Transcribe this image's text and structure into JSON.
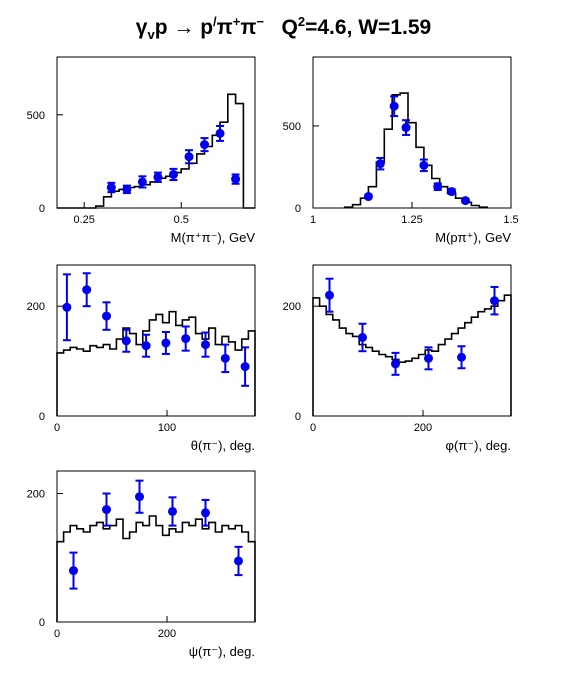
{
  "title": {
    "reaction_a": "γ",
    "reaction_a_sub": "v",
    "reaction_b": "p → p",
    "reaction_b_sup": "/",
    "reaction_c": "π",
    "reaction_c_sup": "+",
    "reaction_d": "π",
    "reaction_d_sup": "−",
    "q2_label": "Q",
    "q2_sup": "2",
    "q2_value": "=4.6, W=1.59"
  },
  "colors": {
    "data_points": "#0000ee",
    "histogram": "#000000",
    "axes": "#000000"
  },
  "chart_data": [
    {
      "type": "histogram+scatter",
      "panel": "top-left",
      "xlabel": "M(π⁺π⁻), GeV",
      "xlim": [
        0.18,
        0.69
      ],
      "ylim": [
        0,
        810
      ],
      "xticks": [
        0.25,
        0.5
      ],
      "yticks": [
        0,
        500
      ],
      "hist_edges": [
        0.18,
        0.2,
        0.22,
        0.24,
        0.26,
        0.28,
        0.3,
        0.32,
        0.34,
        0.36,
        0.38,
        0.4,
        0.42,
        0.44,
        0.46,
        0.48,
        0.5,
        0.52,
        0.54,
        0.56,
        0.58,
        0.6,
        0.62,
        0.64,
        0.66,
        0.69
      ],
      "hist_values": [
        0,
        0,
        0,
        0,
        0,
        10,
        60,
        90,
        100,
        110,
        115,
        125,
        140,
        160,
        170,
        190,
        210,
        240,
        290,
        330,
        390,
        460,
        610,
        560,
        0
      ],
      "points": [
        {
          "x": 0.32,
          "y": 110,
          "err": 25
        },
        {
          "x": 0.36,
          "y": 100,
          "err": 20
        },
        {
          "x": 0.4,
          "y": 140,
          "err": 30
        },
        {
          "x": 0.44,
          "y": 165,
          "err": 25
        },
        {
          "x": 0.48,
          "y": 180,
          "err": 30
        },
        {
          "x": 0.52,
          "y": 275,
          "err": 35
        },
        {
          "x": 0.56,
          "y": 340,
          "err": 35
        },
        {
          "x": 0.6,
          "y": 400,
          "err": 40
        },
        {
          "x": 0.64,
          "y": 155,
          "err": 25
        }
      ]
    },
    {
      "type": "histogram+scatter",
      "panel": "top-right",
      "xlabel": "M(pπ⁺), GeV",
      "xlim": [
        1.0,
        1.5
      ],
      "ylim": [
        0,
        920
      ],
      "xticks": [
        1,
        1.25,
        1.5
      ],
      "xticklabels": [
        "1",
        "1.25",
        "1.5"
      ],
      "yticks": [
        0,
        500
      ],
      "hist_edges": [
        1.08,
        1.1,
        1.12,
        1.14,
        1.16,
        1.18,
        1.2,
        1.22,
        1.24,
        1.26,
        1.28,
        1.3,
        1.32,
        1.34,
        1.36,
        1.38,
        1.4,
        1.42,
        1.44
      ],
      "hist_values": [
        5,
        20,
        60,
        130,
        280,
        480,
        690,
        700,
        520,
        370,
        260,
        180,
        130,
        90,
        60,
        35,
        15,
        5
      ],
      "points": [
        {
          "x": 1.14,
          "y": 70,
          "err": 10
        },
        {
          "x": 1.17,
          "y": 270,
          "err": 35
        },
        {
          "x": 1.205,
          "y": 620,
          "err": 60
        },
        {
          "x": 1.235,
          "y": 490,
          "err": 45
        },
        {
          "x": 1.28,
          "y": 260,
          "err": 35
        },
        {
          "x": 1.315,
          "y": 130,
          "err": 20
        },
        {
          "x": 1.35,
          "y": 100,
          "err": 15
        },
        {
          "x": 1.385,
          "y": 45,
          "err": 10
        }
      ]
    },
    {
      "type": "histogram+scatter",
      "panel": "middle-left",
      "xlabel": "θ(π⁻), deg.",
      "xlim": [
        0,
        180
      ],
      "ylim": [
        0,
        275
      ],
      "xticks": [
        0,
        100
      ],
      "yticks": [
        0,
        200
      ],
      "hist_edges": [
        0,
        6,
        12,
        18,
        24,
        30,
        36,
        42,
        48,
        54,
        60,
        66,
        72,
        78,
        84,
        90,
        96,
        102,
        108,
        114,
        120,
        126,
        132,
        138,
        144,
        150,
        156,
        162,
        168,
        174,
        180
      ],
      "hist_values": [
        115,
        120,
        125,
        122,
        118,
        128,
        125,
        130,
        122,
        140,
        160,
        150,
        130,
        155,
        175,
        185,
        170,
        190,
        165,
        175,
        180,
        150,
        140,
        160,
        130,
        145,
        135,
        120,
        140,
        155
      ],
      "points": [
        {
          "x": 9,
          "y": 198,
          "err": 60
        },
        {
          "x": 27,
          "y": 230,
          "err": 30
        },
        {
          "x": 45,
          "y": 182,
          "err": 25
        },
        {
          "x": 63,
          "y": 137,
          "err": 20
        },
        {
          "x": 81,
          "y": 128,
          "err": 20
        },
        {
          "x": 99,
          "y": 133,
          "err": 20
        },
        {
          "x": 117,
          "y": 141,
          "err": 22
        },
        {
          "x": 135,
          "y": 130,
          "err": 22
        },
        {
          "x": 153,
          "y": 105,
          "err": 25
        },
        {
          "x": 171,
          "y": 90,
          "err": 35
        }
      ]
    },
    {
      "type": "histogram+scatter",
      "panel": "middle-right",
      "xlabel": "φ(π⁻), deg.",
      "xlim": [
        0,
        360
      ],
      "ylim": [
        0,
        275
      ],
      "xticks": [
        0,
        200
      ],
      "yticks": [
        0,
        200
      ],
      "hist_edges": [
        0,
        12,
        24,
        36,
        48,
        60,
        72,
        84,
        96,
        108,
        120,
        132,
        144,
        156,
        168,
        180,
        192,
        204,
        216,
        228,
        240,
        252,
        264,
        276,
        288,
        300,
        312,
        324,
        336,
        348,
        360
      ],
      "hist_values": [
        215,
        200,
        185,
        175,
        160,
        150,
        145,
        130,
        125,
        118,
        112,
        108,
        103,
        98,
        100,
        105,
        112,
        120,
        118,
        130,
        140,
        150,
        160,
        170,
        180,
        190,
        195,
        200,
        210,
        220
      ],
      "points": [
        {
          "x": 30,
          "y": 220,
          "err": 30
        },
        {
          "x": 90,
          "y": 143,
          "err": 25
        },
        {
          "x": 150,
          "y": 95,
          "err": 20
        },
        {
          "x": 210,
          "y": 105,
          "err": 20
        },
        {
          "x": 270,
          "y": 107,
          "err": 20
        },
        {
          "x": 330,
          "y": 210,
          "err": 25
        }
      ]
    },
    {
      "type": "histogram+scatter",
      "panel": "bottom-left",
      "xlabel": "ψ(π⁻), deg.",
      "xlim": [
        0,
        360
      ],
      "ylim": [
        0,
        235
      ],
      "xticks": [
        0,
        200
      ],
      "yticks": [
        0,
        200
      ],
      "hist_edges": [
        0,
        12,
        24,
        36,
        48,
        60,
        72,
        84,
        96,
        108,
        120,
        132,
        144,
        156,
        168,
        180,
        192,
        204,
        216,
        228,
        240,
        252,
        264,
        276,
        288,
        300,
        312,
        324,
        336,
        348,
        360
      ],
      "hist_values": [
        125,
        140,
        150,
        145,
        140,
        150,
        155,
        145,
        150,
        160,
        130,
        140,
        155,
        150,
        165,
        150,
        135,
        145,
        140,
        155,
        150,
        160,
        145,
        155,
        140,
        150,
        145,
        150,
        140,
        125
      ],
      "points": [
        {
          "x": 30,
          "y": 80,
          "err": 28
        },
        {
          "x": 90,
          "y": 175,
          "err": 25
        },
        {
          "x": 150,
          "y": 195,
          "err": 25
        },
        {
          "x": 210,
          "y": 172,
          "err": 22
        },
        {
          "x": 270,
          "y": 170,
          "err": 20
        },
        {
          "x": 330,
          "y": 95,
          "err": 22
        }
      ]
    }
  ]
}
